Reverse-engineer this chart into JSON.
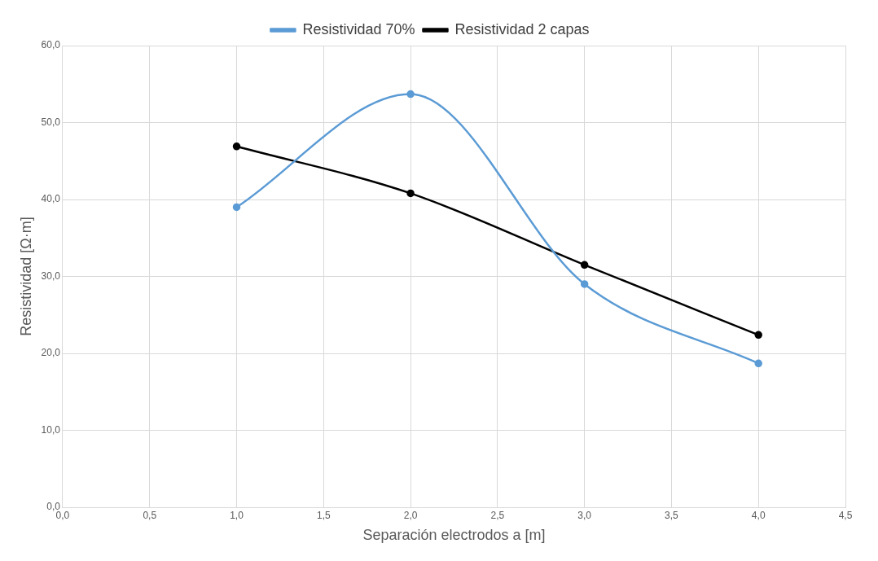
{
  "chart_data": {
    "type": "line",
    "xlabel": "Separación electrodos a [m]",
    "ylabel": "Resistividad [Ω·m]",
    "x": [
      1,
      2,
      3,
      4
    ],
    "series": [
      {
        "name": "Resistividad 70%",
        "color": "#5b9bd5",
        "values": [
          39.0,
          53.7,
          29.0,
          18.7
        ]
      },
      {
        "name": "Resistividad 2 capas",
        "color": "#000000",
        "values": [
          46.9,
          40.8,
          31.5,
          22.4
        ]
      }
    ],
    "xlim": [
      0,
      4.5
    ],
    "xticks": [
      {
        "value": 0,
        "label": "0,0"
      },
      {
        "value": 0.5,
        "label": "0,5"
      },
      {
        "value": 1,
        "label": "1,0"
      },
      {
        "value": 1.5,
        "label": "1,5"
      },
      {
        "value": 2,
        "label": "2,0"
      },
      {
        "value": 2.5,
        "label": "2,5"
      },
      {
        "value": 3,
        "label": "3,0"
      },
      {
        "value": 3.5,
        "label": "3,5"
      },
      {
        "value": 4,
        "label": "4,0"
      },
      {
        "value": 4.5,
        "label": "4,5"
      }
    ],
    "ylim": [
      0,
      60
    ],
    "yticks": [
      {
        "value": 0,
        "label": "0,0"
      },
      {
        "value": 10,
        "label": "10,0"
      },
      {
        "value": 20,
        "label": "20,0"
      },
      {
        "value": 30,
        "label": "30,0"
      },
      {
        "value": 40,
        "label": "40,0"
      },
      {
        "value": 50,
        "label": "50,0"
      },
      {
        "value": 60,
        "label": "60,0"
      }
    ],
    "grid": true,
    "legend": "top",
    "marker": "circle",
    "line_style": "solid"
  }
}
